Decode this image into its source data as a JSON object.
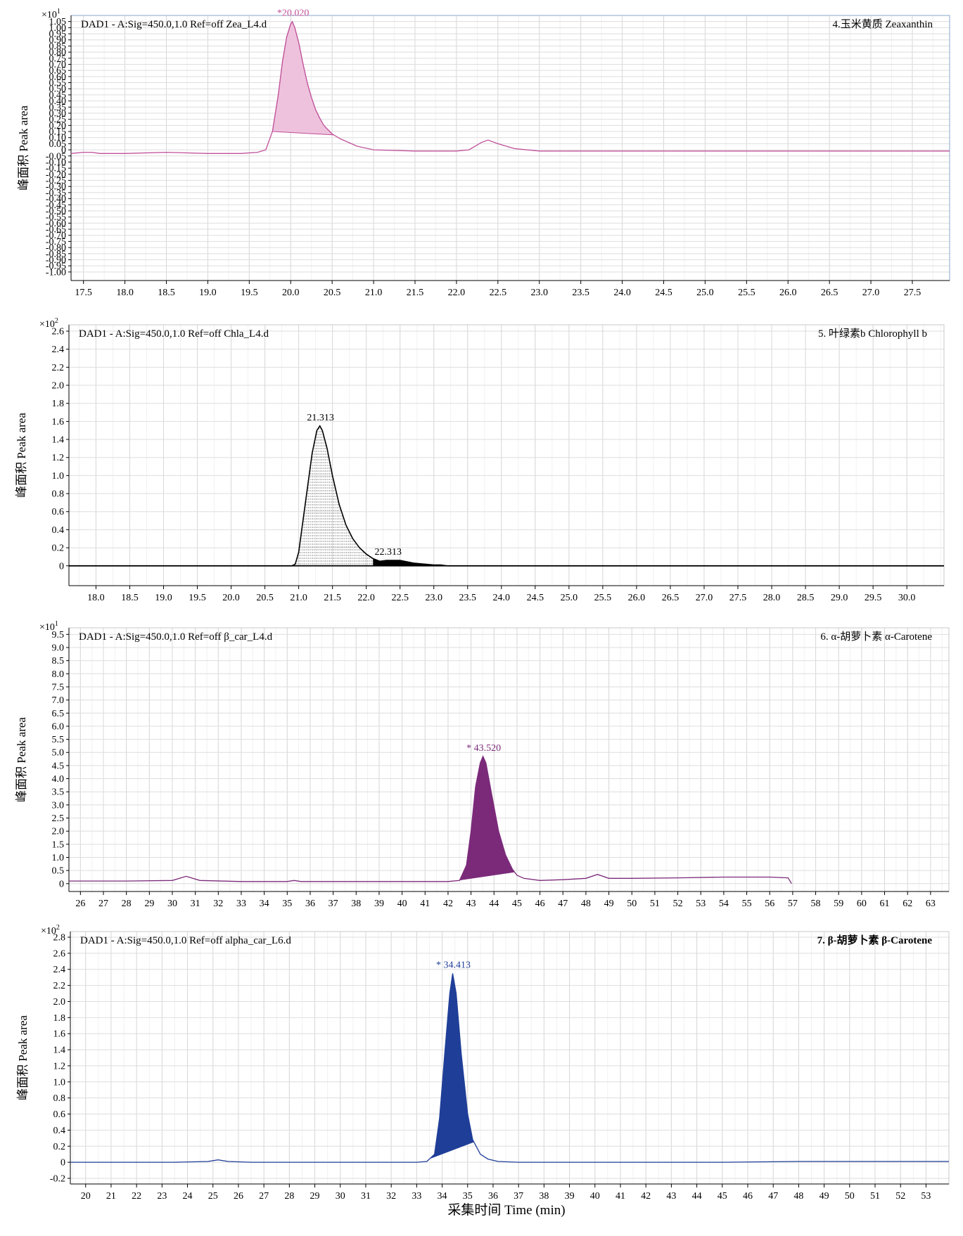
{
  "x_axis_label": "采集时间 Time (min)",
  "chart_data": [
    {
      "type": "line",
      "header": "DAD1 - A:Sig=450.0,1.0  Ref=off Zea_L4.d",
      "compound": "4.玉米黄质 Zeaxanthin",
      "ylabel": "峰面积 Peak area",
      "scale_label": "×10",
      "scale_exp": "1",
      "color": "#c0509a",
      "fill": "#eec2dc",
      "xlim": [
        17.35,
        27.95
      ],
      "ylim": [
        -1.07,
        1.1
      ],
      "x_ticks": [
        "17.5",
        "18.0",
        "18.5",
        "19.0",
        "19.5",
        "20.0",
        "20.5",
        "21.0",
        "21.5",
        "22.0",
        "22.5",
        "23.0",
        "23.5",
        "24.0",
        "24.5",
        "25.0",
        "25.5",
        "26.0",
        "26.5",
        "27.0",
        "27.5"
      ],
      "y_ticks": [
        "1.05",
        "1.00",
        "0.95",
        "0.90",
        "0.85",
        "0.80",
        "0.75",
        "0.70",
        "0.65",
        "0.60",
        "0.55",
        "0.50",
        "0.45",
        "0.40",
        "0.35",
        "0.30",
        "0.25",
        "0.20",
        "0.15",
        "0.10",
        "0.05",
        "0",
        "-0.05",
        "-0.10",
        "-0.15",
        "-0.20",
        "-0.25",
        "-0.30",
        "-0.35",
        "-0.40",
        "-0.45",
        "-0.50",
        "-0.55",
        "-0.60",
        "-0.65",
        "-0.70",
        "-0.75",
        "-0.80",
        "-0.85",
        "-0.90",
        "-0.95",
        "-1.00"
      ],
      "series": [
        {
          "x": [
            17.35,
            17.5,
            17.6,
            17.7,
            18.0,
            18.5,
            19.0,
            19.4,
            19.6,
            19.7,
            19.78,
            19.85,
            19.9,
            19.95,
            20.0,
            20.02,
            20.05,
            20.1,
            20.15,
            20.2,
            20.25,
            20.3,
            20.35,
            20.4,
            20.5,
            20.6,
            20.8,
            21.0,
            21.5,
            22.0,
            22.15,
            22.3,
            22.38,
            22.5,
            22.7,
            23.0,
            24.0,
            25.0,
            26.0,
            27.0,
            27.95
          ],
          "y": [
            -0.03,
            -0.02,
            -0.02,
            -0.03,
            -0.03,
            -0.02,
            -0.03,
            -0.03,
            -0.02,
            0.0,
            0.15,
            0.45,
            0.72,
            0.92,
            1.03,
            1.05,
            1.0,
            0.87,
            0.7,
            0.55,
            0.43,
            0.33,
            0.26,
            0.2,
            0.13,
            0.09,
            0.03,
            0.0,
            -0.01,
            -0.01,
            0.0,
            0.06,
            0.08,
            0.05,
            0.01,
            -0.01,
            -0.01,
            -0.01,
            -0.01,
            -0.01,
            -0.01
          ]
        }
      ],
      "integration": {
        "start": 19.78,
        "end": 20.52,
        "style": "fill"
      },
      "peaks": [
        {
          "rt": 20.02,
          "label": "*20.020"
        }
      ]
    },
    {
      "type": "line",
      "header": "DAD1 - A:Sig=450.0,1.0  Ref=off Chla_L4.d",
      "compound": "5. 叶绿素b Chlorophyll b",
      "ylabel": "峰面积 Peak area",
      "scale_label": "×10",
      "scale_exp": "2",
      "color": "#000000",
      "fill": "#ffffff",
      "xlim": [
        17.6,
        30.55
      ],
      "ylim": [
        -0.22,
        2.67
      ],
      "x_ticks": [
        "18.0",
        "18.5",
        "19.0",
        "19.5",
        "20.0",
        "20.5",
        "21.0",
        "21.5",
        "22.0",
        "22.5",
        "23.0",
        "23.5",
        "24.0",
        "24.5",
        "25.0",
        "25.5",
        "26.0",
        "26.5",
        "27.0",
        "27.5",
        "28.0",
        "28.5",
        "29.0",
        "29.5",
        "30.0"
      ],
      "y_ticks": [
        "2.6",
        "2.4",
        "2.2",
        "2.0",
        "1.8",
        "1.6",
        "1.4",
        "1.2",
        "1.0",
        "0.8",
        "0.6",
        "0.4",
        "0.2",
        "0"
      ],
      "series": [
        {
          "x": [
            17.6,
            20.9,
            20.95,
            21.0,
            21.1,
            21.2,
            21.27,
            21.313,
            21.35,
            21.42,
            21.5,
            21.6,
            21.7,
            21.8,
            21.9,
            22.0,
            22.1,
            22.2,
            22.3,
            22.5,
            22.7,
            23.0,
            23.1,
            23.2,
            30.55
          ],
          "y": [
            0.0,
            0.0,
            0.02,
            0.15,
            0.7,
            1.25,
            1.5,
            1.55,
            1.5,
            1.3,
            1.0,
            0.68,
            0.45,
            0.3,
            0.2,
            0.13,
            0.08,
            0.05,
            0.06,
            0.06,
            0.03,
            0.01,
            0.01,
            0.0,
            0.0
          ]
        }
      ],
      "integration": {
        "start": 20.95,
        "end": 22.1,
        "style": "hatch"
      },
      "secondary_integration": {
        "start": 22.1,
        "end": 23.1,
        "style": "fill"
      },
      "peaks": [
        {
          "rt": 21.313,
          "label": "21.313"
        },
        {
          "rt": 22.313,
          "label": "22.313"
        }
      ]
    },
    {
      "type": "line",
      "header": "DAD1 - A:Sig=450.0,1.0  Ref=off β_car_L4.d",
      "compound": "6. α-胡萝卜素 α-Carotene",
      "ylabel": "峰面积 Peak area",
      "scale_label": "×10",
      "scale_exp": "1",
      "color": "#7b2a7a",
      "fill": "#7b2a7a",
      "xlim": [
        25.5,
        63.8
      ],
      "ylim": [
        -0.3,
        9.75
      ],
      "x_ticks": [
        "26",
        "27",
        "28",
        "29",
        "30",
        "31",
        "32",
        "33",
        "34",
        "35",
        "36",
        "37",
        "38",
        "39",
        "40",
        "41",
        "42",
        "43",
        "44",
        "45",
        "46",
        "47",
        "48",
        "49",
        "50",
        "51",
        "52",
        "53",
        "54",
        "55",
        "56",
        "57",
        "58",
        "59",
        "60",
        "61",
        "62",
        "63"
      ],
      "y_ticks": [
        "9.5",
        "9.0",
        "8.5",
        "8.0",
        "7.5",
        "7.0",
        "6.5",
        "6.0",
        "5.5",
        "5.0",
        "4.5",
        "4.0",
        "3.5",
        "3.0",
        "2.5",
        "2.0",
        "1.5",
        "1.0",
        "0.5",
        "0"
      ],
      "series": [
        {
          "x": [
            25.5,
            28.0,
            30.0,
            30.6,
            31.2,
            33.0,
            35.0,
            35.3,
            35.6,
            38.0,
            40.0,
            42.0,
            42.5,
            42.8,
            43.0,
            43.2,
            43.4,
            43.52,
            43.65,
            43.9,
            44.2,
            44.5,
            44.8,
            45.0,
            45.3,
            46.0,
            47.0,
            48.0,
            48.5,
            49.0,
            50.0,
            52.0,
            54.0,
            56.0,
            56.8,
            56.95
          ],
          "y": [
            0.1,
            0.1,
            0.12,
            0.28,
            0.12,
            0.08,
            0.08,
            0.12,
            0.08,
            0.08,
            0.08,
            0.08,
            0.12,
            0.7,
            2.0,
            3.7,
            4.6,
            4.85,
            4.6,
            3.4,
            2.0,
            1.1,
            0.55,
            0.32,
            0.2,
            0.12,
            0.15,
            0.2,
            0.35,
            0.2,
            0.2,
            0.22,
            0.25,
            0.25,
            0.22,
            0.0
          ]
        }
      ],
      "integration": {
        "start": 42.4,
        "end": 44.9,
        "style": "fill"
      },
      "peaks": [
        {
          "rt": 43.52,
          "label": "* 43.520"
        }
      ]
    },
    {
      "type": "line",
      "header": "DAD1 - A:Sig=450.0,1.0  Ref=off alpha_car_L6.d",
      "compound": "7. β-胡萝卜素 β-Carotene",
      "ylabel": "峰面积 Peak area",
      "scale_label": "×10",
      "scale_exp": "2",
      "color": "#1f3e98",
      "fill": "#1f3e98",
      "xlim": [
        19.4,
        53.9
      ],
      "ylim": [
        -0.27,
        2.87
      ],
      "x_ticks": [
        "20",
        "21",
        "22",
        "23",
        "24",
        "25",
        "26",
        "27",
        "28",
        "29",
        "30",
        "31",
        "32",
        "33",
        "34",
        "35",
        "36",
        "37",
        "38",
        "39",
        "40",
        "41",
        "42",
        "43",
        "44",
        "45",
        "46",
        "47",
        "48",
        "49",
        "50",
        "51",
        "52",
        "53"
      ],
      "y_ticks": [
        "2.8",
        "2.6",
        "2.4",
        "2.2",
        "2.0",
        "1.8",
        "1.6",
        "1.4",
        "1.2",
        "1.0",
        "0.8",
        "0.6",
        "0.4",
        "0.2",
        "0",
        "-0.2"
      ],
      "series": [
        {
          "x": [
            19.4,
            23.5,
            24.8,
            25.2,
            25.6,
            26.5,
            33.0,
            33.4,
            33.7,
            33.9,
            34.1,
            34.3,
            34.413,
            34.55,
            34.75,
            35.0,
            35.2,
            35.5,
            35.8,
            36.2,
            37.0,
            40.0,
            45.0,
            48.0,
            53.9
          ],
          "y": [
            0.0,
            0.0,
            0.01,
            0.03,
            0.01,
            0.0,
            0.0,
            0.01,
            0.1,
            0.55,
            1.35,
            2.1,
            2.35,
            2.1,
            1.35,
            0.6,
            0.28,
            0.1,
            0.04,
            0.01,
            0.0,
            0.0,
            0.0,
            0.01,
            0.01
          ]
        }
      ],
      "integration": {
        "start": 33.5,
        "end": 35.25,
        "style": "fill"
      },
      "peaks": [
        {
          "rt": 34.413,
          "label": "* 34.413"
        }
      ]
    }
  ]
}
